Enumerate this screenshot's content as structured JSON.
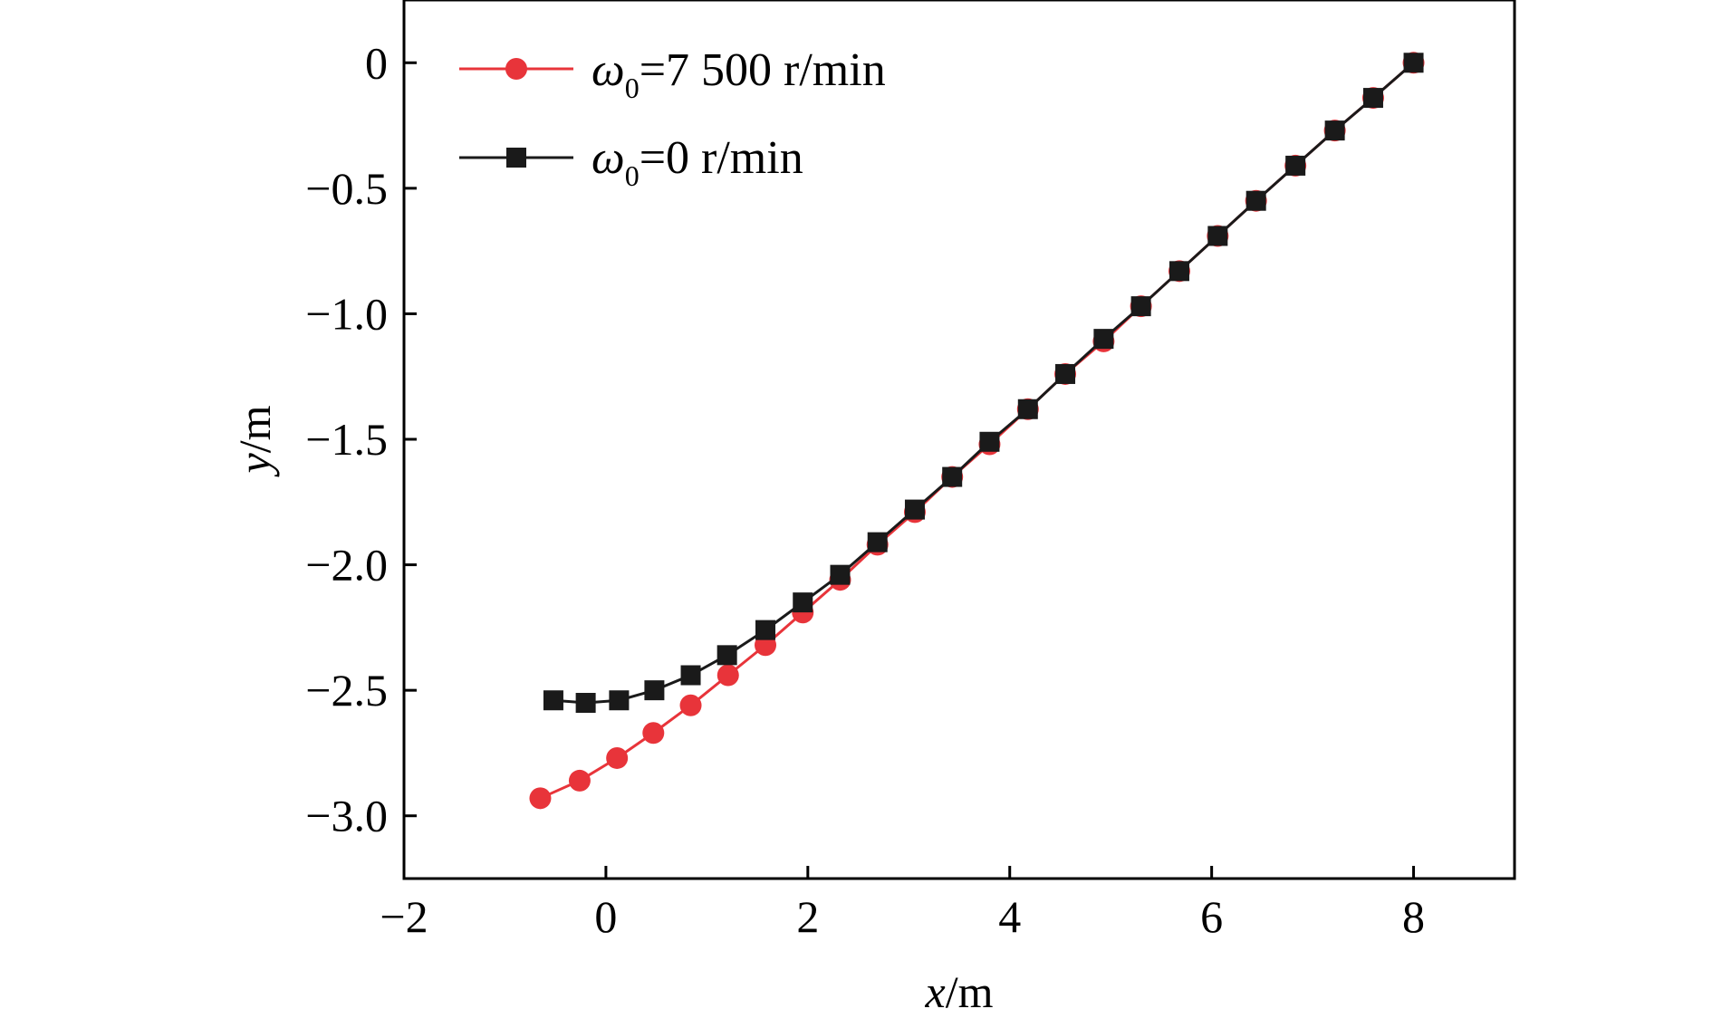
{
  "chart_data": {
    "type": "line",
    "xlabel": {
      "var": "x",
      "unit": "/m"
    },
    "ylabel": {
      "var": "y",
      "unit": "/m"
    },
    "xlim": [
      -2,
      9
    ],
    "ylim": [
      -3.25,
      0.25
    ],
    "xticks": [
      -2,
      0,
      2,
      4,
      6,
      8
    ],
    "xtick_labels": [
      "−2",
      "0",
      "2",
      "4",
      "6",
      "8"
    ],
    "yticks": [
      0,
      -0.5,
      -1.0,
      -1.5,
      -2.0,
      -2.5,
      -3.0
    ],
    "ytick_labels": [
      "0",
      "−0.5",
      "−1.0",
      "−1.5",
      "−2.0",
      "−2.5",
      "−3.0"
    ],
    "grid": false,
    "legend_position": "top-left",
    "series": [
      {
        "name": "ω₀=7 500 r/min",
        "legend": {
          "symbol": "ω",
          "subscript": "0",
          "rest": "=7 500 r/min"
        },
        "color": "#e8343a",
        "marker": "circle",
        "x": [
          -0.65,
          -0.26,
          0.11,
          0.47,
          0.84,
          1.21,
          1.58,
          1.95,
          2.32,
          2.69,
          3.06,
          3.43,
          3.8,
          4.18,
          4.55,
          4.93,
          5.3,
          5.68,
          6.06,
          6.44,
          6.83,
          7.22,
          7.6,
          8.0
        ],
        "y": [
          -2.93,
          -2.86,
          -2.77,
          -2.67,
          -2.56,
          -2.44,
          -2.32,
          -2.19,
          -2.06,
          -1.92,
          -1.79,
          -1.65,
          -1.52,
          -1.38,
          -1.24,
          -1.11,
          -0.97,
          -0.83,
          -0.69,
          -0.55,
          -0.41,
          -0.27,
          -0.14,
          0.0
        ]
      },
      {
        "name": "ω₀=0 r/min",
        "legend": {
          "symbol": "ω",
          "subscript": "0",
          "rest": "=0 r/min"
        },
        "color": "#1a1a1a",
        "marker": "square",
        "x": [
          -0.52,
          -0.2,
          0.13,
          0.48,
          0.84,
          1.2,
          1.58,
          1.95,
          2.32,
          2.69,
          3.06,
          3.43,
          3.8,
          4.18,
          4.55,
          4.93,
          5.3,
          5.68,
          6.06,
          6.44,
          6.83,
          7.22,
          7.6,
          8.0
        ],
        "y": [
          -2.54,
          -2.55,
          -2.54,
          -2.5,
          -2.44,
          -2.36,
          -2.26,
          -2.15,
          -2.04,
          -1.91,
          -1.78,
          -1.65,
          -1.51,
          -1.38,
          -1.24,
          -1.1,
          -0.97,
          -0.83,
          -0.69,
          -0.55,
          -0.41,
          -0.27,
          -0.14,
          0.0
        ]
      }
    ]
  }
}
